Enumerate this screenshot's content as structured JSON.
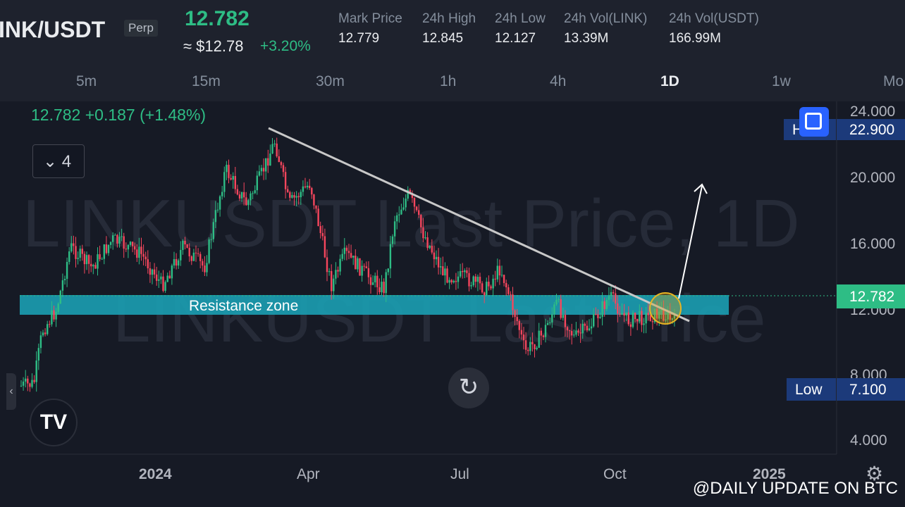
{
  "header": {
    "symbol": "INK/USDT",
    "contract_type": "Perp",
    "last_price": "12.782",
    "usd_price": "≈ $12.78",
    "change_24h": "+3.20%",
    "stats": [
      {
        "label": "Mark Price",
        "value": "12.779"
      },
      {
        "label": "24h High",
        "value": "12.845"
      },
      {
        "label": "24h Low",
        "value": "12.127"
      },
      {
        "label": "24h Vol(LINK)",
        "value": "13.39M"
      },
      {
        "label": "24h Vol(USDT)",
        "value": "166.99M"
      }
    ]
  },
  "timeframes": [
    "5m",
    "15m",
    "30m",
    "1h",
    "4h",
    "1D",
    "1w",
    "Mo"
  ],
  "active_timeframe": "1D",
  "legend": {
    "ohlc_text": "12.782  +0.187 (+1.48%)",
    "indicator_toggle": "4"
  },
  "chart_data": {
    "type": "candlestick",
    "symbol_watermark": "LINKUSDT Last Price, 1D",
    "symbol_watermark_2": "LINKUSDT Last Price",
    "y_ticks": [
      "24.000",
      "20.000",
      "16.000",
      "12.000",
      "8.000",
      "4.000"
    ],
    "x_ticks": [
      "2024",
      "Apr",
      "Jul",
      "Oct",
      "2025"
    ],
    "last_price_label": "12.782",
    "high_marker": {
      "label": "H",
      "value": "22.900"
    },
    "low_marker": {
      "label": "Low",
      "value": "7.100"
    },
    "annotations": {
      "zone_label": "Resistance zone",
      "trendline": "descending trendline from the March 2024 high",
      "breakout_arrow": "projected breakout to the upside"
    },
    "colors": {
      "up": "#2ebd85",
      "down": "#f6465d",
      "zone": "#1b9fb3",
      "trendline": "#c8c8c8",
      "last_price_tag": "#2ebd85"
    }
  },
  "watermark": "@DAILY UPDATE ON BTC"
}
